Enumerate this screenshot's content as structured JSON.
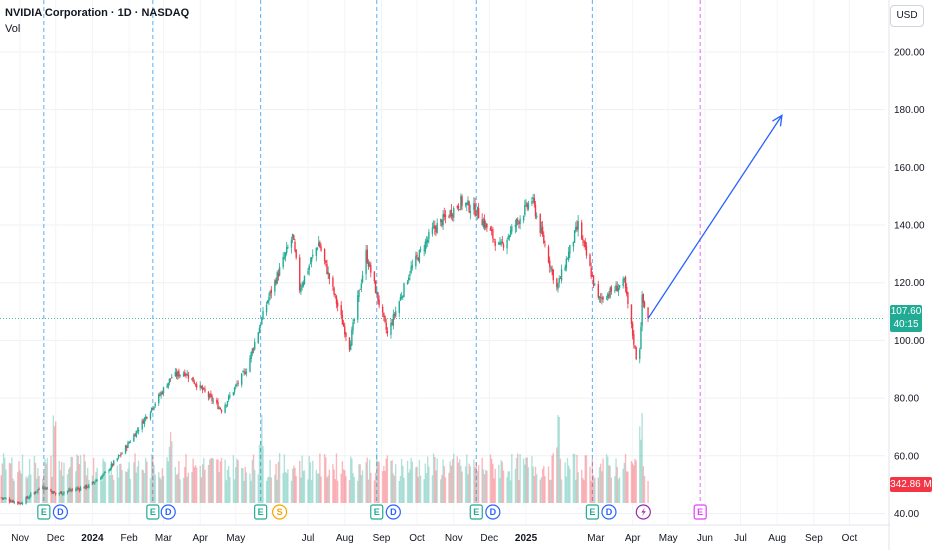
{
  "header": {
    "symbol": "NVIDIA Corporation · 1D · NASDAQ",
    "volume_label": "Vol",
    "currency": "USD"
  },
  "price_tag": {
    "price": "107.60",
    "countdown": "40:15",
    "color": "#22ab94"
  },
  "volume_tag": {
    "value": "342.86 M",
    "color": "#f23645"
  },
  "colors": {
    "up": "#22ab94",
    "down": "#f23645",
    "projection": "#2962ff",
    "divider": "#2196f3",
    "future_divider": "#e040fb"
  },
  "chart_data": {
    "type": "candlestick",
    "symbol": "NVIDIA Corporation · 1D · NASDAQ",
    "y_axis": {
      "ticks": [
        40,
        60,
        80,
        100,
        120,
        140,
        160,
        180,
        200
      ],
      "tick_labels": [
        "40.00",
        "60.00",
        "80.00",
        "100.00",
        "120.00",
        "140.00",
        "160.00",
        "180.00",
        "200.00"
      ],
      "range": [
        36,
        218
      ]
    },
    "x_axis": {
      "range": [
        "2023-10-15",
        "2025-10-31"
      ],
      "ticks": [
        {
          "date": "2023-11-01",
          "label": "Nov"
        },
        {
          "date": "2023-12-01",
          "label": "Dec"
        },
        {
          "date": "2024-01-01",
          "label": "2024",
          "bold": true
        },
        {
          "date": "2024-02-01",
          "label": "Feb"
        },
        {
          "date": "2024-03-01",
          "label": "Mar"
        },
        {
          "date": "2024-04-01",
          "label": "Apr"
        },
        {
          "date": "2024-05-01",
          "label": "May"
        },
        {
          "date": "2024-07-01",
          "label": "Jul"
        },
        {
          "date": "2024-08-01",
          "label": "Aug"
        },
        {
          "date": "2024-09-01",
          "label": "Sep"
        },
        {
          "date": "2024-10-01",
          "label": "Oct"
        },
        {
          "date": "2024-11-01",
          "label": "Nov"
        },
        {
          "date": "2024-12-01",
          "label": "Dec"
        },
        {
          "date": "2025-01-01",
          "label": "2025",
          "bold": true
        },
        {
          "date": "2025-03-01",
          "label": "Mar"
        },
        {
          "date": "2025-04-01",
          "label": "Apr"
        },
        {
          "date": "2025-05-01",
          "label": "May"
        },
        {
          "date": "2025-06-01",
          "label": "Jun"
        },
        {
          "date": "2025-07-01",
          "label": "Jul"
        },
        {
          "date": "2025-08-01",
          "label": "Aug"
        },
        {
          "date": "2025-09-01",
          "label": "Sep"
        },
        {
          "date": "2025-10-01",
          "label": "Oct"
        }
      ]
    },
    "price_path": [
      [
        "2023-10-16",
        45.5
      ],
      [
        "2023-11-01",
        43.5
      ],
      [
        "2023-11-20",
        49.5
      ],
      [
        "2023-12-01",
        46.8
      ],
      [
        "2023-12-29",
        49.5
      ],
      [
        "2024-01-12",
        54.0
      ],
      [
        "2024-01-26",
        61.0
      ],
      [
        "2024-02-08",
        69.0
      ],
      [
        "2024-02-23",
        78.5
      ],
      [
        "2024-03-08",
        87.5
      ],
      [
        "2024-03-19",
        89.0
      ],
      [
        "2024-04-19",
        76.0
      ],
      [
        "2024-05-10",
        90.0
      ],
      [
        "2024-05-28",
        114.0
      ],
      [
        "2024-06-18",
        136.0
      ],
      [
        "2024-06-24",
        118.0
      ],
      [
        "2024-07-10",
        134.0
      ],
      [
        "2024-08-05",
        98.0
      ],
      [
        "2024-08-19",
        130.0
      ],
      [
        "2024-09-06",
        102.0
      ],
      [
        "2024-09-25",
        124.0
      ],
      [
        "2024-10-14",
        138.0
      ],
      [
        "2024-11-07",
        148.0
      ],
      [
        "2024-11-20",
        145.0
      ],
      [
        "2024-12-10",
        132.0
      ],
      [
        "2025-01-06",
        149.0
      ],
      [
        "2025-01-27",
        118.0
      ],
      [
        "2025-02-14",
        140.0
      ],
      [
        "2025-03-03",
        114.0
      ],
      [
        "2025-03-25",
        120.0
      ],
      [
        "2025-04-04",
        94.3
      ],
      [
        "2025-04-07",
        97.6
      ],
      [
        "2025-04-09",
        114.3
      ],
      [
        "2025-04-14",
        107.6
      ]
    ],
    "volume_spikes": [
      {
        "date": "2023-12-01",
        "direction": "down"
      },
      {
        "date": "2024-03-08",
        "direction": "down"
      },
      {
        "date": "2024-05-23",
        "direction": "up"
      },
      {
        "date": "2025-01-27",
        "direction": "down"
      },
      {
        "date": "2025-04-07",
        "direction": "up"
      }
    ],
    "last_price": 107.6,
    "last_volume": "342.86 M",
    "projection": {
      "from": [
        "2025-04-14",
        107.6
      ],
      "to": [
        "2025-08-05",
        178.0
      ]
    },
    "earnings_dividers": [
      "2023-11-21",
      "2024-02-21",
      "2024-05-22",
      "2024-08-28",
      "2024-11-20",
      "2025-02-26"
    ],
    "future_divider": "2025-05-28",
    "events": [
      {
        "date": "2023-11-21",
        "type": "E"
      },
      {
        "date": "2023-12-05",
        "type": "D"
      },
      {
        "date": "2024-02-21",
        "type": "E"
      },
      {
        "date": "2024-03-05",
        "type": "D"
      },
      {
        "date": "2024-05-22",
        "type": "E"
      },
      {
        "date": "2024-06-07",
        "type": "S"
      },
      {
        "date": "2024-08-28",
        "type": "E"
      },
      {
        "date": "2024-09-11",
        "type": "D"
      },
      {
        "date": "2024-11-20",
        "type": "E"
      },
      {
        "date": "2024-12-04",
        "type": "D"
      },
      {
        "date": "2025-02-26",
        "type": "E"
      },
      {
        "date": "2025-03-12",
        "type": "D"
      },
      {
        "date": "2025-04-10",
        "type": "alert"
      },
      {
        "date": "2025-05-28",
        "type": "E",
        "future": true
      }
    ]
  }
}
